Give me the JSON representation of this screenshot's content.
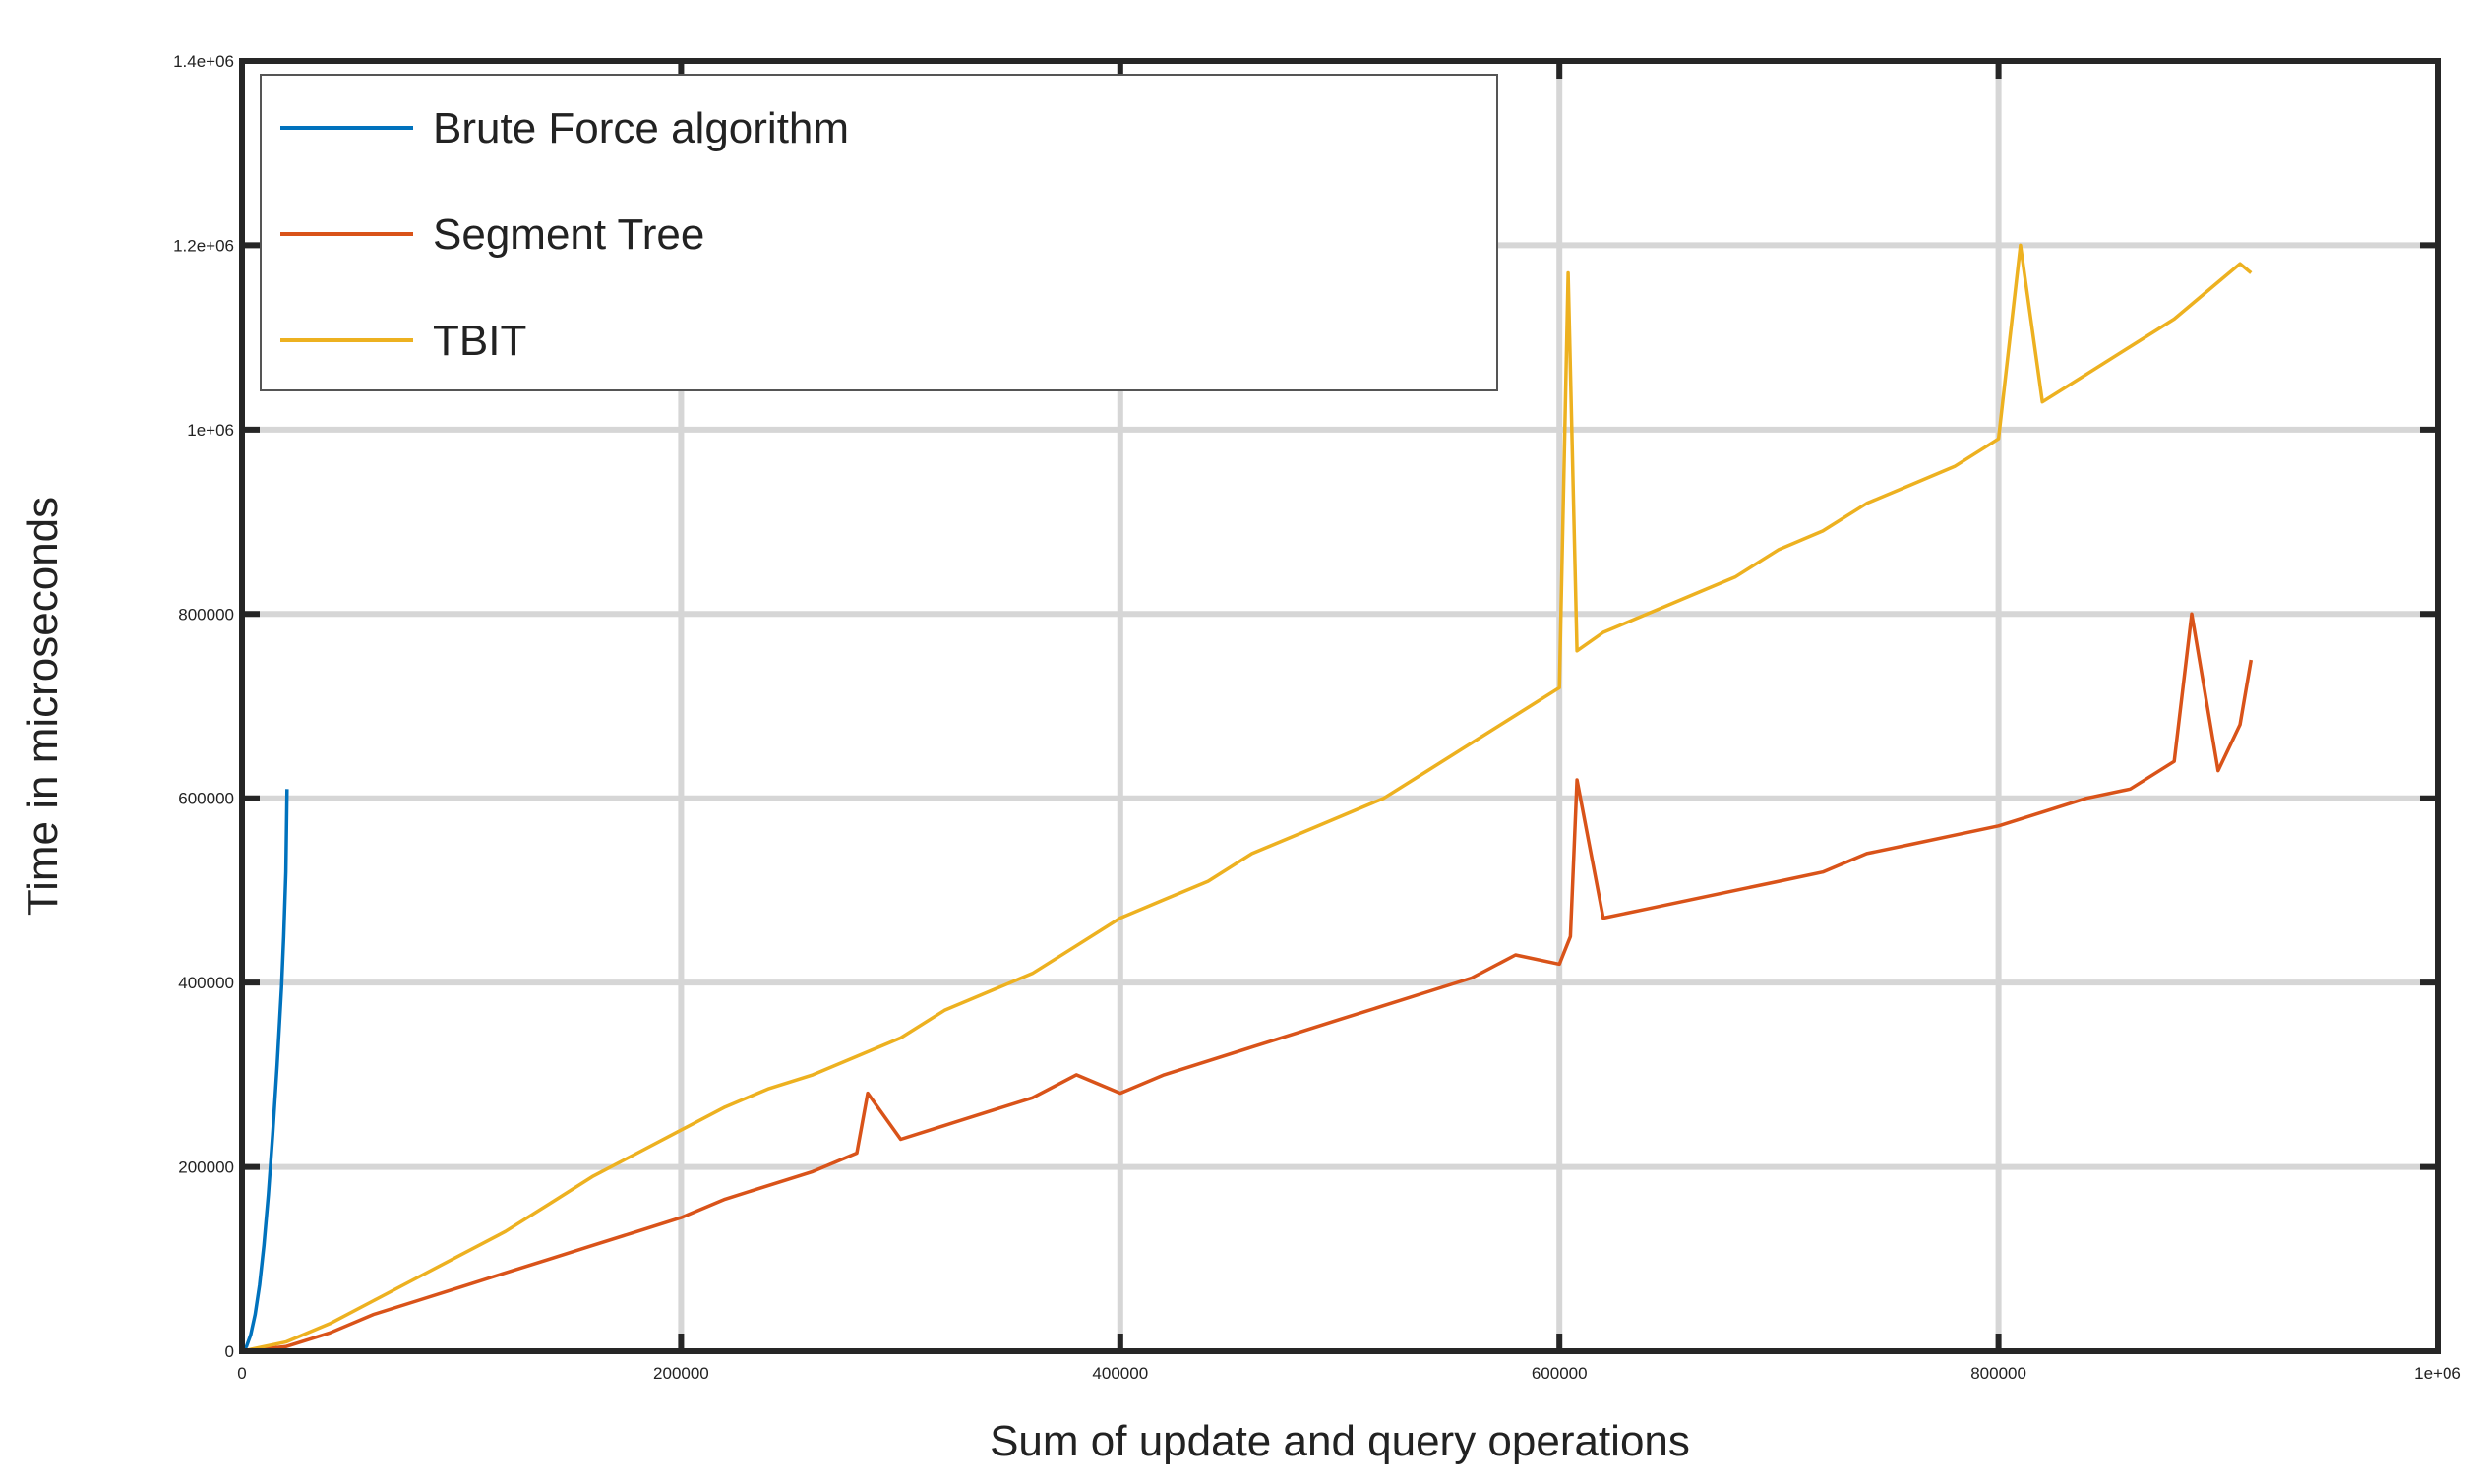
{
  "chart_data": {
    "type": "line",
    "title": "",
    "xlabel": "Sum of update and query operations",
    "ylabel": "Time in microseconds",
    "xlim": [
      0,
      1000000
    ],
    "ylim": [
      0,
      1400000
    ],
    "x_ticks": [
      {
        "value": 0,
        "label": "0"
      },
      {
        "value": 200000,
        "label": "200000"
      },
      {
        "value": 400000,
        "label": "400000"
      },
      {
        "value": 600000,
        "label": "600000"
      },
      {
        "value": 800000,
        "label": "800000"
      },
      {
        "value": 1000000,
        "label": "1e+06"
      }
    ],
    "y_ticks": [
      {
        "value": 0,
        "label": "0"
      },
      {
        "value": 200000,
        "label": "200000"
      },
      {
        "value": 400000,
        "label": "400000"
      },
      {
        "value": 600000,
        "label": "600000"
      },
      {
        "value": 800000,
        "label": "800000"
      },
      {
        "value": 1000000,
        "label": "1e+06"
      },
      {
        "value": 1200000,
        "label": "1.2e+06"
      },
      {
        "value": 1400000,
        "label": "1.4e+06"
      }
    ],
    "grid": true,
    "legend_position": "top-left",
    "series": [
      {
        "name": "Brute Force algorithm",
        "color": "#0072bd",
        "x": [
          0,
          2000,
          4000,
          6000,
          8000,
          10000,
          12000,
          14000,
          16000,
          18000,
          19000,
          20000,
          20500
        ],
        "y": [
          0,
          5000,
          18000,
          40000,
          72000,
          115000,
          170000,
          235000,
          310000,
          395000,
          450000,
          520000,
          610000
        ]
      },
      {
        "name": "Segment Tree",
        "color": "#d95319",
        "x": [
          0,
          20000,
          40000,
          60000,
          80000,
          100000,
          120000,
          140000,
          160000,
          180000,
          200000,
          220000,
          240000,
          260000,
          280000,
          285000,
          300000,
          320000,
          340000,
          360000,
          380000,
          400000,
          420000,
          440000,
          460000,
          480000,
          500000,
          520000,
          540000,
          560000,
          580000,
          600000,
          605000,
          608000,
          620000,
          640000,
          660000,
          680000,
          700000,
          720000,
          740000,
          760000,
          780000,
          800000,
          820000,
          840000,
          860000,
          880000,
          888000,
          900000,
          910000,
          915000
        ],
        "y": [
          0,
          5000,
          20000,
          40000,
          55000,
          70000,
          85000,
          100000,
          115000,
          130000,
          145000,
          165000,
          180000,
          195000,
          215000,
          280000,
          230000,
          245000,
          260000,
          275000,
          300000,
          280000,
          300000,
          315000,
          330000,
          345000,
          360000,
          375000,
          390000,
          405000,
          430000,
          420000,
          450000,
          620000,
          470000,
          480000,
          490000,
          500000,
          510000,
          520000,
          540000,
          550000,
          560000,
          570000,
          585000,
          600000,
          610000,
          640000,
          800000,
          630000,
          680000,
          750000
        ]
      },
      {
        "name": "TBIT",
        "color": "#edb120",
        "x": [
          0,
          20000,
          40000,
          60000,
          80000,
          100000,
          120000,
          140000,
          160000,
          180000,
          200000,
          220000,
          240000,
          260000,
          280000,
          300000,
          320000,
          340000,
          360000,
          380000,
          400000,
          420000,
          440000,
          460000,
          480000,
          500000,
          520000,
          540000,
          560000,
          580000,
          600000,
          604000,
          608000,
          620000,
          640000,
          660000,
          680000,
          700000,
          720000,
          740000,
          760000,
          780000,
          800000,
          810000,
          820000,
          840000,
          860000,
          880000,
          900000,
          910000,
          915000
        ],
        "y": [
          0,
          10000,
          30000,
          55000,
          80000,
          105000,
          130000,
          160000,
          190000,
          215000,
          240000,
          265000,
          285000,
          300000,
          320000,
          340000,
          370000,
          390000,
          410000,
          440000,
          470000,
          490000,
          510000,
          540000,
          560000,
          580000,
          600000,
          630000,
          660000,
          690000,
          720000,
          1170000,
          760000,
          780000,
          800000,
          820000,
          840000,
          870000,
          890000,
          920000,
          940000,
          960000,
          990000,
          1200000,
          1030000,
          1060000,
          1090000,
          1120000,
          1160000,
          1180000,
          1170000
        ]
      }
    ]
  }
}
